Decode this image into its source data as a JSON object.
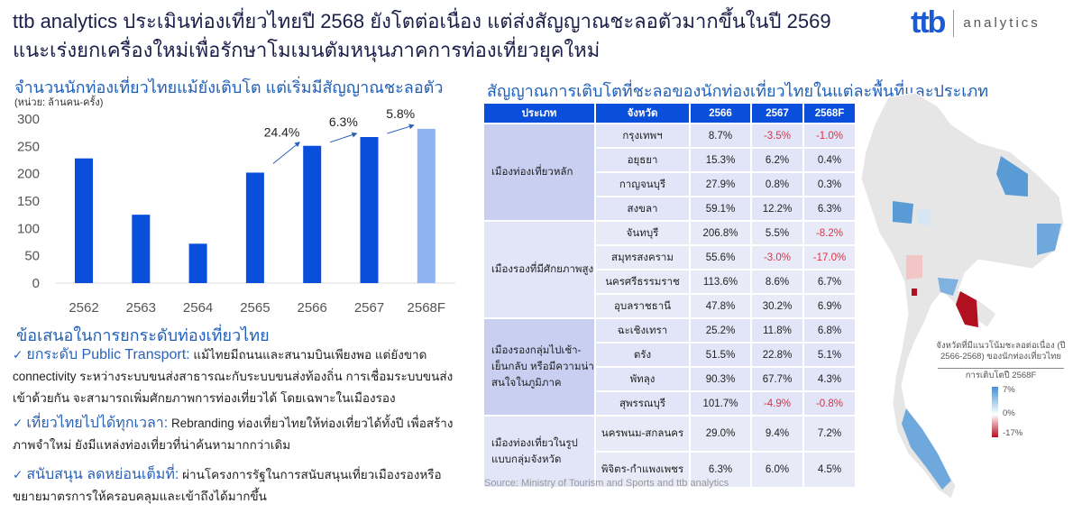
{
  "header": {
    "title_line1": "ttb analytics ประเมินท่องเที่ยวไทยปี 2568 ยังโตต่อเนื่อง แต่ส่งสัญญาณชะลอตัวมากขึ้นในปี 2569",
    "title_line2": "แนะเร่งยกเครื่องใหม่เพื่อรักษาโมเมนตัมหนุนภาคการท่องเที่ยวยุคใหม่",
    "logo_mark": "ttb",
    "logo_text": "analytics"
  },
  "chart_section": {
    "title": "จำนวนนักท่องเที่ยวไทยแม้ยังเติบโต แต่เริ่มมีสัญญาณชะลอตัว",
    "unit": "(หน่วย: ล้านคน-ครั้ง)"
  },
  "chart_data": {
    "type": "bar",
    "categories": [
      "2562",
      "2563",
      "2564",
      "2565",
      "2566",
      "2567",
      "2568F"
    ],
    "values": [
      228,
      125,
      72,
      202,
      251,
      267,
      282
    ],
    "ylim": [
      0,
      300
    ],
    "yticks": [
      0,
      50,
      100,
      150,
      200,
      250,
      300
    ],
    "colors": [
      "#0a4fdc",
      "#0a4fdc",
      "#0a4fdc",
      "#0a4fdc",
      "#0a4fdc",
      "#0a4fdc",
      "#8fb2f0"
    ],
    "annotations": [
      {
        "from": "2565",
        "to": "2566",
        "label": "24.4%"
      },
      {
        "from": "2566",
        "to": "2567",
        "label": "6.3%"
      },
      {
        "from": "2567",
        "to": "2568F",
        "label": "5.8%"
      }
    ]
  },
  "proposals": {
    "title": "ข้อเสนอในการยกระดับท่องเที่ยวไทย",
    "items": [
      {
        "key": "ยกระดับ Public Transport:",
        "text": "แม้ไทยมีถนนและสนามบินเพียงพอ แต่ยังขาด connectivity ระหว่างระบบขนส่งสาธารณะกับระบบขนส่งท้องถิ่น การเชื่อมระบบขนส่งเข้าด้วยกัน จะสามารถเพิ่มศักยภาพการท่องเที่ยวได้ โดยเฉพาะในเมืองรอง"
      },
      {
        "key": "เที่ยวไทยไปได้ทุกเวลา:",
        "text": "Rebranding ท่องเที่ยวไทยให้ท่องเที่ยวได้ทั้งปี เพื่อสร้างภาพจำใหม่ ยังมีแหล่งท่องเที่ยวที่น่าค้นหามากกว่าเดิม"
      },
      {
        "key": "สนับสนุน ลดหย่อนเต็มที่:",
        "text": "ผ่านโครงการรัฐในการสนับสนุนเที่ยวเมืองรองหรือขยายมาตรการให้ครอบคลุมและเข้าถึงได้มากขึ้น"
      }
    ]
  },
  "table": {
    "title": "สัญญาณการเติบโตที่ชะลอของนักท่องเที่ยวไทยในแต่ละพื้นที่และประเภท",
    "headers": [
      "ประเภท",
      "จังหวัด",
      "2566",
      "2567",
      "2568F"
    ],
    "groups": [
      {
        "category": "เมืองท่องเที่ยวหลัก",
        "rows": [
          [
            "กรุงเทพฯ",
            "8.7%",
            "-3.5%",
            "-1.0%"
          ],
          [
            "อยุธยา",
            "15.3%",
            "6.2%",
            "0.4%"
          ],
          [
            "กาญจนบุรี",
            "27.9%",
            "0.8%",
            "0.3%"
          ],
          [
            "สงขลา",
            "59.1%",
            "12.2%",
            "6.3%"
          ]
        ]
      },
      {
        "category": "เมืองรองที่มีศักยภาพสูง",
        "rows": [
          [
            "จันทบุรี",
            "206.8%",
            "5.5%",
            "-8.2%"
          ],
          [
            "สมุทรสงคราม",
            "55.6%",
            "-3.0%",
            "-17.0%"
          ],
          [
            "นครศรีธรรมราช",
            "113.6%",
            "8.6%",
            "6.7%"
          ],
          [
            "อุบลราชธานี",
            "47.8%",
            "30.2%",
            "6.9%"
          ]
        ]
      },
      {
        "category": "เมืองรองกลุ่มไปเช้า-เย็นกลับ หรือมีความน่าสนใจในภูมิภาค",
        "rows": [
          [
            "ฉะเชิงเทรา",
            "25.2%",
            "11.8%",
            "6.8%"
          ],
          [
            "ตรัง",
            "51.5%",
            "22.8%",
            "5.1%"
          ],
          [
            "พัทลุง",
            "90.3%",
            "67.7%",
            "4.3%"
          ],
          [
            "สุพรรณบุรี",
            "101.7%",
            "-4.9%",
            "-0.8%"
          ]
        ]
      },
      {
        "category": "เมืองท่องเที่ยวในรูปแบบกลุ่มจังหวัด",
        "rows": [
          [
            "นครพนม-สกลนคร",
            "29.0%",
            "9.4%",
            "7.2%"
          ],
          [
            "พิจิตร-กำแพงเพชร",
            "6.3%",
            "6.0%",
            "4.5%"
          ]
        ]
      }
    ]
  },
  "source": "Source:  Ministry of Tourism and Sports and ttb analytics",
  "map": {
    "legend_title": "จังหวัดที่มีแนวโน้มชะลอต่อเนื่อง (ปี 2566-2568) ของนักท่องเที่ยวไทย",
    "legend_subtitle": "การเติบโตปี 2568F",
    "scale_max": "7%",
    "scale_mid": "0%",
    "scale_min": "-17%",
    "colors": {
      "positive": "#4a8fd0",
      "negative": "#b01020",
      "neutral": "#e6e6e6"
    }
  }
}
